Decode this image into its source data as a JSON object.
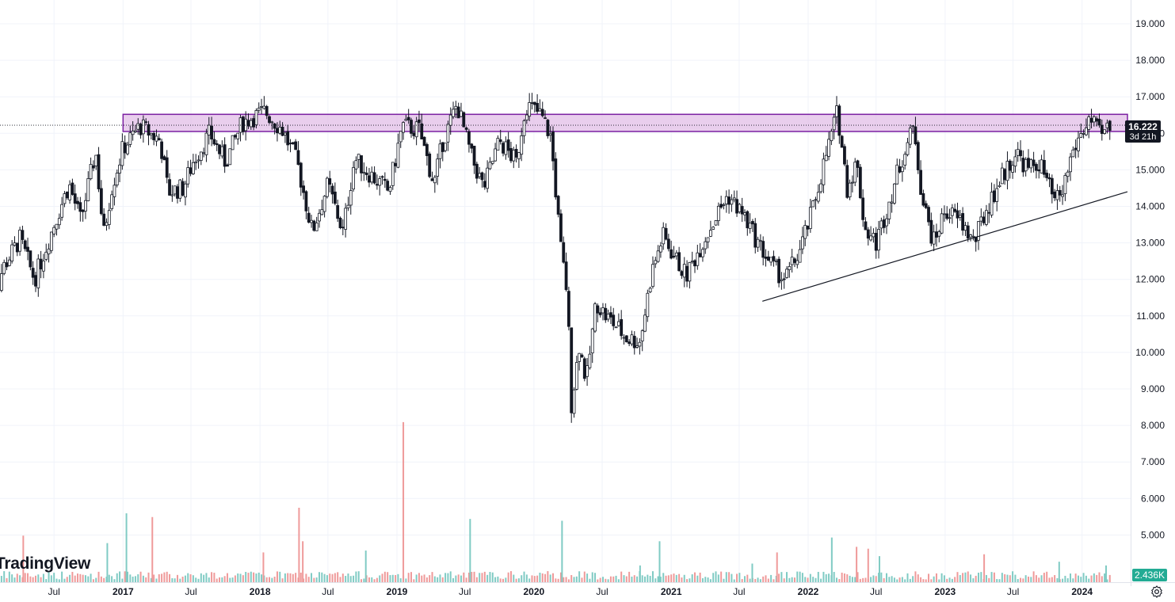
{
  "chart_data": {
    "type": "candlestick",
    "interval": "weekly",
    "y_ticks": [
      5,
      6,
      7,
      8,
      9,
      10,
      11,
      12,
      13,
      14,
      15,
      16,
      17,
      18,
      19
    ],
    "y_tick_labels": [
      "5.000",
      "6.000",
      "7.000",
      "8.000",
      "9.000",
      "10.000",
      "11.000",
      "12.000",
      "13.000",
      "14.000",
      "15.000",
      "16.000",
      "17.000",
      "18.000",
      "19.000"
    ],
    "ylim": [
      4.0,
      19.6
    ],
    "x_range": [
      "2016-01-01",
      "2024-05-01"
    ],
    "x_ticks": [
      {
        "label": "Jul",
        "date": "2016-07-01",
        "bold": false
      },
      {
        "label": "2017",
        "date": "2017-01-01",
        "bold": true
      },
      {
        "label": "Jul",
        "date": "2017-07-01",
        "bold": false
      },
      {
        "label": "2018",
        "date": "2018-01-01",
        "bold": true
      },
      {
        "label": "Jul",
        "date": "2018-07-01",
        "bold": false
      },
      {
        "label": "2019",
        "date": "2019-01-01",
        "bold": true
      },
      {
        "label": "Jul",
        "date": "2019-07-01",
        "bold": false
      },
      {
        "label": "2020",
        "date": "2020-01-01",
        "bold": true
      },
      {
        "label": "Jul",
        "date": "2020-07-01",
        "bold": false
      },
      {
        "label": "2021",
        "date": "2021-01-01",
        "bold": true
      },
      {
        "label": "Jul",
        "date": "2021-07-01",
        "bold": false
      },
      {
        "label": "2022",
        "date": "2022-01-01",
        "bold": true
      },
      {
        "label": "Jul",
        "date": "2022-07-01",
        "bold": false
      },
      {
        "label": "2023",
        "date": "2023-01-01",
        "bold": true
      },
      {
        "label": "Jul",
        "date": "2023-07-01",
        "bold": false
      },
      {
        "label": "2024",
        "date": "2024-01-01",
        "bold": true
      }
    ],
    "price_path": [
      [
        "2016-01-01",
        10.6
      ],
      [
        "2016-02-15",
        12.3
      ],
      [
        "2016-04-01",
        13.1
      ],
      [
        "2016-05-10",
        12.0
      ],
      [
        "2016-07-01",
        13.5
      ],
      [
        "2016-08-10",
        14.6
      ],
      [
        "2016-09-10",
        13.6
      ],
      [
        "2016-10-20",
        15.5
      ],
      [
        "2016-11-10",
        13.2
      ],
      [
        "2016-12-01",
        14.5
      ],
      [
        "2017-01-01",
        15.6
      ],
      [
        "2017-02-15",
        16.2
      ],
      [
        "2017-04-10",
        15.8
      ],
      [
        "2017-05-01",
        14.4
      ],
      [
        "2017-06-10",
        14.5
      ],
      [
        "2017-07-10",
        15.3
      ],
      [
        "2017-08-20",
        16.0
      ],
      [
        "2017-10-01",
        15.2
      ],
      [
        "2017-11-15",
        16.3
      ],
      [
        "2018-01-15",
        16.6
      ],
      [
        "2018-03-01",
        16.1
      ],
      [
        "2018-04-10",
        15.2
      ],
      [
        "2018-05-20",
        13.3
      ],
      [
        "2018-07-01",
        14.6
      ],
      [
        "2018-08-10",
        13.3
      ],
      [
        "2018-09-10",
        15.3
      ],
      [
        "2018-10-20",
        14.9
      ],
      [
        "2018-12-10",
        14.4
      ],
      [
        "2019-01-15",
        16.2
      ],
      [
        "2019-03-01",
        16.1
      ],
      [
        "2019-04-10",
        14.6
      ],
      [
        "2019-05-01",
        15.7
      ],
      [
        "2019-06-10",
        16.8
      ],
      [
        "2019-07-20",
        15.3
      ],
      [
        "2019-08-20",
        14.5
      ],
      [
        "2019-10-01",
        15.8
      ],
      [
        "2019-11-15",
        15.2
      ],
      [
        "2019-12-10",
        16.8
      ],
      [
        "2020-01-20",
        16.5
      ],
      [
        "2020-02-15",
        15.9
      ],
      [
        "2020-03-01",
        14.2
      ],
      [
        "2020-03-12",
        12.9
      ],
      [
        "2020-03-30",
        11.6
      ],
      [
        "2020-04-10",
        8.6
      ],
      [
        "2020-05-01",
        10.2
      ],
      [
        "2020-05-20",
        9.2
      ],
      [
        "2020-06-15",
        11.4
      ],
      [
        "2020-07-10",
        11.0
      ],
      [
        "2020-08-10",
        10.7
      ],
      [
        "2020-09-01",
        10.4
      ],
      [
        "2020-10-10",
        10.3
      ],
      [
        "2020-11-10",
        12.2
      ],
      [
        "2020-12-10",
        13.2
      ],
      [
        "2021-01-10",
        12.6
      ],
      [
        "2021-02-10",
        12.1
      ],
      [
        "2021-03-20",
        12.9
      ],
      [
        "2021-05-10",
        13.9
      ],
      [
        "2021-06-01",
        14.3
      ],
      [
        "2021-07-10",
        13.8
      ],
      [
        "2021-08-20",
        13.0
      ],
      [
        "2021-10-01",
        12.3
      ],
      [
        "2021-11-01",
        12.0
      ],
      [
        "2021-12-10",
        12.8
      ],
      [
        "2022-01-10",
        13.8
      ],
      [
        "2022-02-15",
        15.3
      ],
      [
        "2022-03-20",
        16.6
      ],
      [
        "2022-04-15",
        14.5
      ],
      [
        "2022-05-10",
        15.2
      ],
      [
        "2022-06-01",
        13.4
      ],
      [
        "2022-07-01",
        13.0
      ],
      [
        "2022-08-01",
        14.0
      ],
      [
        "2022-09-01",
        15.1
      ],
      [
        "2022-10-10",
        16.2
      ],
      [
        "2022-11-01",
        14.2
      ],
      [
        "2022-12-01",
        13.0
      ],
      [
        "2023-01-01",
        13.9
      ],
      [
        "2023-02-10",
        13.6
      ],
      [
        "2023-03-20",
        13.0
      ],
      [
        "2023-04-20",
        13.9
      ],
      [
        "2023-06-01",
        14.8
      ],
      [
        "2023-07-10",
        15.5
      ],
      [
        "2023-08-10",
        15.0
      ],
      [
        "2023-09-10",
        15.2
      ],
      [
        "2023-10-20",
        14.1
      ],
      [
        "2023-11-10",
        14.4
      ],
      [
        "2023-12-01",
        15.3
      ],
      [
        "2023-12-20",
        15.8
      ],
      [
        "2024-01-20",
        16.4
      ],
      [
        "2024-02-20",
        15.9
      ],
      [
        "2024-03-15",
        16.2
      ]
    ],
    "annotations": {
      "resistance_zone": {
        "from": 16.05,
        "to": 16.52,
        "start": "2017-01-01",
        "end": "2024-05-01",
        "color": "#e1bee7",
        "border": "#7b1fa2"
      },
      "trendline": {
        "start": {
          "date": "2021-09-01",
          "price": 11.4
        },
        "end": {
          "date": "2024-05-01",
          "price": 14.4
        },
        "color": "#131722"
      },
      "last_price_line": 16.222
    },
    "volume": {
      "label": "2.436K",
      "up_color": "#80cbc4",
      "down_color": "#ef9a9a",
      "spikes": [
        {
          "date": "2016-04-10",
          "value": 2.5,
          "up": false
        },
        {
          "date": "2016-11-20",
          "value": 2.1,
          "up": true
        },
        {
          "date": "2017-01-10",
          "value": 3.7,
          "up": true
        },
        {
          "date": "2017-03-20",
          "value": 3.5,
          "up": false
        },
        {
          "date": "2018-01-10",
          "value": 1.6,
          "up": false
        },
        {
          "date": "2018-04-15",
          "value": 4.0,
          "up": false
        },
        {
          "date": "2018-04-25",
          "value": 2.2,
          "up": false
        },
        {
          "date": "2018-10-10",
          "value": 1.7,
          "up": true
        },
        {
          "date": "2019-01-18",
          "value": 8.6,
          "up": false
        },
        {
          "date": "2019-07-15",
          "value": 3.4,
          "up": true
        },
        {
          "date": "2020-03-16",
          "value": 3.3,
          "up": true
        },
        {
          "date": "2020-10-10",
          "value": 0.9,
          "up": true
        },
        {
          "date": "2020-12-01",
          "value": 2.2,
          "up": true
        },
        {
          "date": "2021-08-05",
          "value": 1.0,
          "up": true
        },
        {
          "date": "2021-10-10",
          "value": 1.6,
          "up": false
        },
        {
          "date": "2022-03-05",
          "value": 2.4,
          "up": true
        },
        {
          "date": "2022-05-10",
          "value": 1.9,
          "up": false
        },
        {
          "date": "2022-06-10",
          "value": 1.8,
          "up": false
        },
        {
          "date": "2022-07-10",
          "value": 1.4,
          "up": true
        },
        {
          "date": "2023-04-15",
          "value": 1.5,
          "up": false
        },
        {
          "date": "2023-11-01",
          "value": 1.1,
          "up": true
        },
        {
          "date": "2024-03-05",
          "value": 0.9,
          "up": true
        }
      ]
    }
  },
  "price_tag": {
    "value": "16.222",
    "countdown": "3d 21h",
    "background": "#131722"
  },
  "volume_tag": {
    "value": "2.436K",
    "background": "#22ab94"
  },
  "logo": {
    "text": "TradingView"
  },
  "icons": {
    "settings": "settings-icon"
  }
}
